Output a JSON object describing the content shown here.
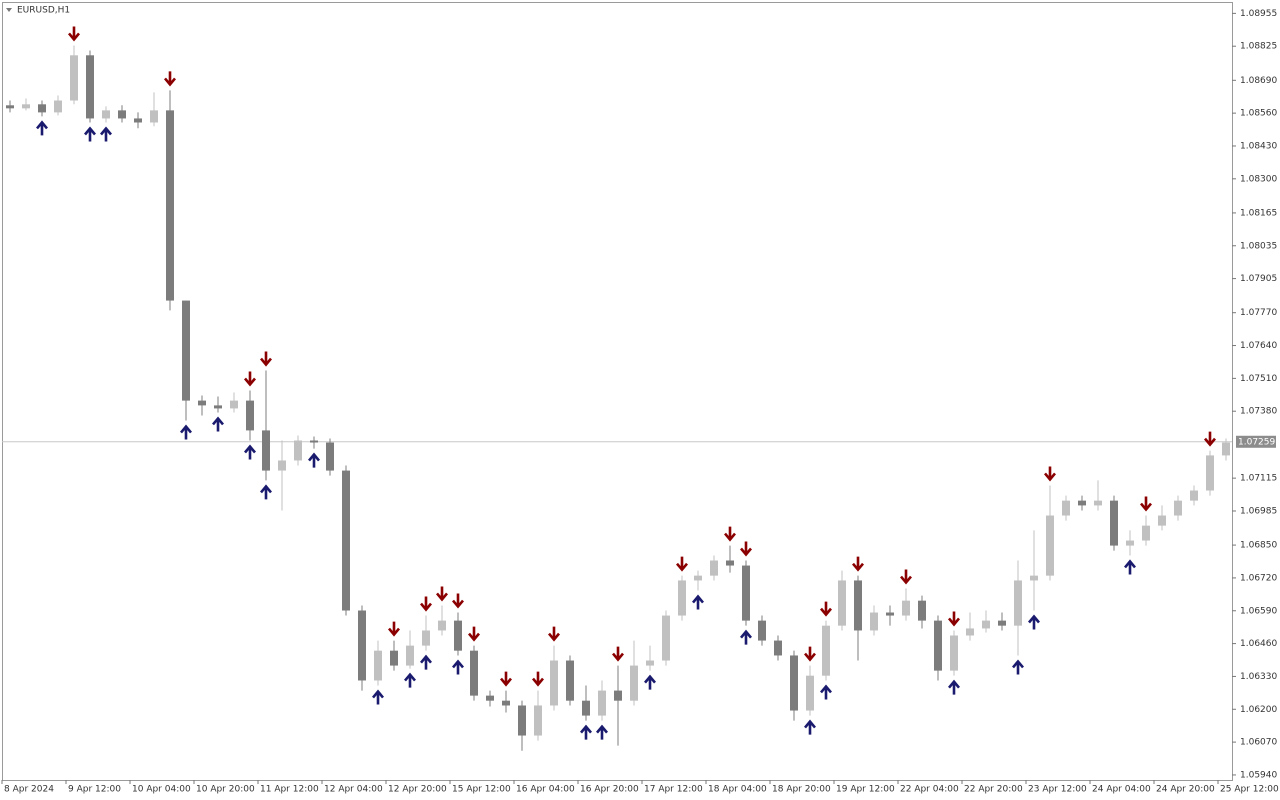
{
  "chart_data": {
    "type": "candlestick",
    "title": "EURUSD,H1",
    "up_color": "#c0c0c0",
    "down_color": "#7c7c7c",
    "sell_color": "#8b0000",
    "buy_color": "#1a1a6e",
    "ylim": [
      1.0592,
      1.09
    ],
    "yticks": [
      1.08955,
      1.08825,
      {
        "value": 1.0869,
        "label": "1.08690"
      },
      {
        "value": 1.0856,
        "label": "1.08560"
      },
      {
        "value": 1.0843,
        "label": "1.08430"
      },
      {
        "value": 1.083,
        "label": "1.08300"
      },
      1.08165,
      1.08035,
      1.07905,
      {
        "value": 1.0777,
        "label": "1.07770"
      },
      {
        "value": 1.0764,
        "label": "1.07640"
      },
      {
        "value": 1.0751,
        "label": "1.07510"
      },
      {
        "value": 1.0738,
        "label": "1.07380"
      },
      1.07115,
      1.06985,
      {
        "value": 1.0685,
        "label": "1.06850"
      },
      {
        "value": 1.0672,
        "label": "1.06720"
      },
      {
        "value": 1.0659,
        "label": "1.06590"
      },
      {
        "value": 1.0646,
        "label": "1.06460"
      },
      {
        "value": 1.0633,
        "label": "1.06330"
      },
      {
        "value": 1.062,
        "label": "1.06200"
      },
      {
        "value": 1.0607,
        "label": "1.06070"
      },
      {
        "value": 1.0594,
        "label": "1.05940"
      }
    ],
    "xlim": [
      0,
      77
    ],
    "xticks": [
      {
        "value": 0,
        "label": "8 Apr 2024"
      },
      {
        "value": 4,
        "label": "9 Apr 12:00"
      },
      {
        "value": 8,
        "label": "10 Apr 04:00"
      },
      {
        "value": 12,
        "label": "10 Apr 20:00"
      },
      {
        "value": 16,
        "label": "11 Apr 12:00"
      },
      {
        "value": 20,
        "label": "12 Apr 04:00"
      },
      {
        "value": 24,
        "label": "12 Apr 20:00"
      },
      {
        "value": 28,
        "label": "15 Apr 12:00"
      },
      {
        "value": 32,
        "label": "16 Apr 04:00"
      },
      {
        "value": 36,
        "label": "16 Apr 20:00"
      },
      {
        "value": 40,
        "label": "17 Apr 12:00"
      },
      {
        "value": 44,
        "label": "18 Apr 04:00"
      },
      {
        "value": 48,
        "label": "18 Apr 20:00"
      },
      {
        "value": 52,
        "label": "19 Apr 12:00"
      },
      {
        "value": 56,
        "label": "22 Apr 04:00"
      },
      {
        "value": 60,
        "label": "22 Apr 20:00"
      },
      {
        "value": 64,
        "label": "23 Apr 12:00"
      },
      {
        "value": 68,
        "label": "24 Apr 04:00"
      },
      {
        "value": 72,
        "label": "24 Apr 20:00"
      },
      {
        "value": 76,
        "label": "25 Apr 12:00"
      }
    ],
    "current_price": {
      "value": 1.07259,
      "label": "1.07259"
    },
    "open": [
      1.08591,
      1.08579,
      1.08595,
      1.08563,
      1.0861,
      1.08789,
      1.08539,
      1.08571,
      1.08539,
      1.08523,
      1.08571,
      1.07818,
      1.07422,
      1.07403,
      1.07391,
      1.07422,
      1.07304,
      1.07145,
      1.07185,
      1.07264,
      1.07256,
      1.07145,
      1.06591,
      1.06314,
      1.06432,
      1.06373,
      1.06452,
      1.06512,
      1.06551,
      1.06432,
      1.06254,
      1.06234,
      1.06215,
      1.06096,
      1.06215,
      1.06393,
      1.06234,
      1.06175,
      1.06274,
      1.06234,
      1.06373,
      1.06393,
      1.06571,
      1.0671,
      1.06729,
      1.06789,
      1.06769,
      1.06551,
      1.06472,
      1.06413,
      1.06195,
      1.06333,
      1.06531,
      1.0671,
      1.06512,
      1.06583,
      1.06571,
      1.0663,
      1.06551,
      1.06353,
      1.06492,
      1.0652,
      1.06551,
      1.06531,
      1.0671,
      1.06729,
      1.06967,
      1.07026,
      1.07007,
      1.07026,
      1.06848,
      1.06868,
      1.06927,
      1.06967,
      1.07026,
      1.07066,
      1.07205
    ],
    "high": [
      1.0861,
      1.08618,
      1.0861,
      1.0863,
      1.08828,
      1.08808,
      1.08587,
      1.08591,
      1.08563,
      1.08642,
      1.0865,
      1.07818,
      1.07442,
      1.07438,
      1.07454,
      1.07462,
      1.07541,
      1.07264,
      1.07284,
      1.0728,
      1.07272,
      1.07165,
      1.06611,
      1.06472,
      1.06472,
      1.06512,
      1.06571,
      1.06611,
      1.06583,
      1.06452,
      1.06274,
      1.06274,
      1.06234,
      1.06274,
      1.06452,
      1.06413,
      1.06294,
      1.06314,
      1.06373,
      1.06472,
      1.06452,
      1.06591,
      1.06729,
      1.06749,
      1.06809,
      1.06848,
      1.06789,
      1.06571,
      1.06492,
      1.06432,
      1.06373,
      1.06551,
      1.06749,
      1.06729,
      1.06611,
      1.06611,
      1.06678,
      1.0665,
      1.06571,
      1.06512,
      1.06583,
      1.06591,
      1.06583,
      1.06789,
      1.06908,
      1.07086,
      1.07046,
      1.07046,
      1.07106,
      1.07046,
      1.06908,
      1.06967,
      1.07007,
      1.07046,
      1.07086,
      1.07224,
      1.07272
    ],
    "low": [
      1.08563,
      1.08571,
      1.08547,
      1.08551,
      1.08595,
      1.08523,
      1.08523,
      1.08523,
      1.085,
      1.08508,
      1.07779,
      1.07343,
      1.07363,
      1.07375,
      1.07375,
      1.07264,
      1.07106,
      1.06987,
      1.07165,
      1.07232,
      1.07125,
      1.06571,
      1.06274,
      1.06294,
      1.06353,
      1.06361,
      1.06432,
      1.06492,
      1.06413,
      1.06234,
      1.06211,
      1.06187,
      1.06036,
      1.06076,
      1.06195,
      1.06215,
      1.06155,
      1.06155,
      1.06056,
      1.06215,
      1.06353,
      1.06373,
      1.06551,
      1.0667,
      1.0671,
      1.06741,
      1.06531,
      1.06452,
      1.06393,
      1.06155,
      1.06175,
      1.06314,
      1.06512,
      1.06393,
      1.06492,
      1.06531,
      1.06551,
      1.0652,
      1.06314,
      1.06333,
      1.06472,
      1.06504,
      1.06512,
      1.06413,
      1.06591,
      1.0671,
      1.06947,
      1.06987,
      1.06987,
      1.06828,
      1.06809,
      1.06848,
      1.06908,
      1.06947,
      1.07007,
      1.07046,
      1.07185
    ],
    "close": [
      1.08579,
      1.08595,
      1.08563,
      1.0861,
      1.08789,
      1.08539,
      1.08571,
      1.08539,
      1.08523,
      1.08571,
      1.07818,
      1.07422,
      1.07403,
      1.07391,
      1.07422,
      1.07304,
      1.07145,
      1.07185,
      1.07264,
      1.07256,
      1.07145,
      1.06591,
      1.06314,
      1.06432,
      1.06373,
      1.06452,
      1.06512,
      1.06551,
      1.06432,
      1.06254,
      1.06234,
      1.06215,
      1.06096,
      1.06215,
      1.06393,
      1.06234,
      1.06175,
      1.06274,
      1.06234,
      1.06373,
      1.06393,
      1.06571,
      1.0671,
      1.06729,
      1.06789,
      1.06769,
      1.06551,
      1.06472,
      1.06413,
      1.06195,
      1.06333,
      1.06531,
      1.0671,
      1.06512,
      1.06583,
      1.06571,
      1.0663,
      1.06551,
      1.06353,
      1.06492,
      1.0652,
      1.06551,
      1.06531,
      1.0671,
      1.06729,
      1.06967,
      1.07026,
      1.07007,
      1.07026,
      1.06848,
      1.06868,
      1.06927,
      1.06967,
      1.07026,
      1.07066,
      1.07205,
      1.07256
    ],
    "sell_signals": [
      4,
      10,
      15,
      16,
      24,
      26,
      27,
      28,
      29,
      31,
      33,
      34,
      38,
      42,
      45,
      46,
      50,
      51,
      53,
      56,
      59,
      65,
      71,
      75
    ],
    "buy_signals": [
      2,
      5,
      6,
      11,
      13,
      15,
      16,
      19,
      23,
      25,
      26,
      28,
      36,
      37,
      40,
      43,
      46,
      50,
      51,
      59,
      63,
      64,
      70
    ]
  }
}
